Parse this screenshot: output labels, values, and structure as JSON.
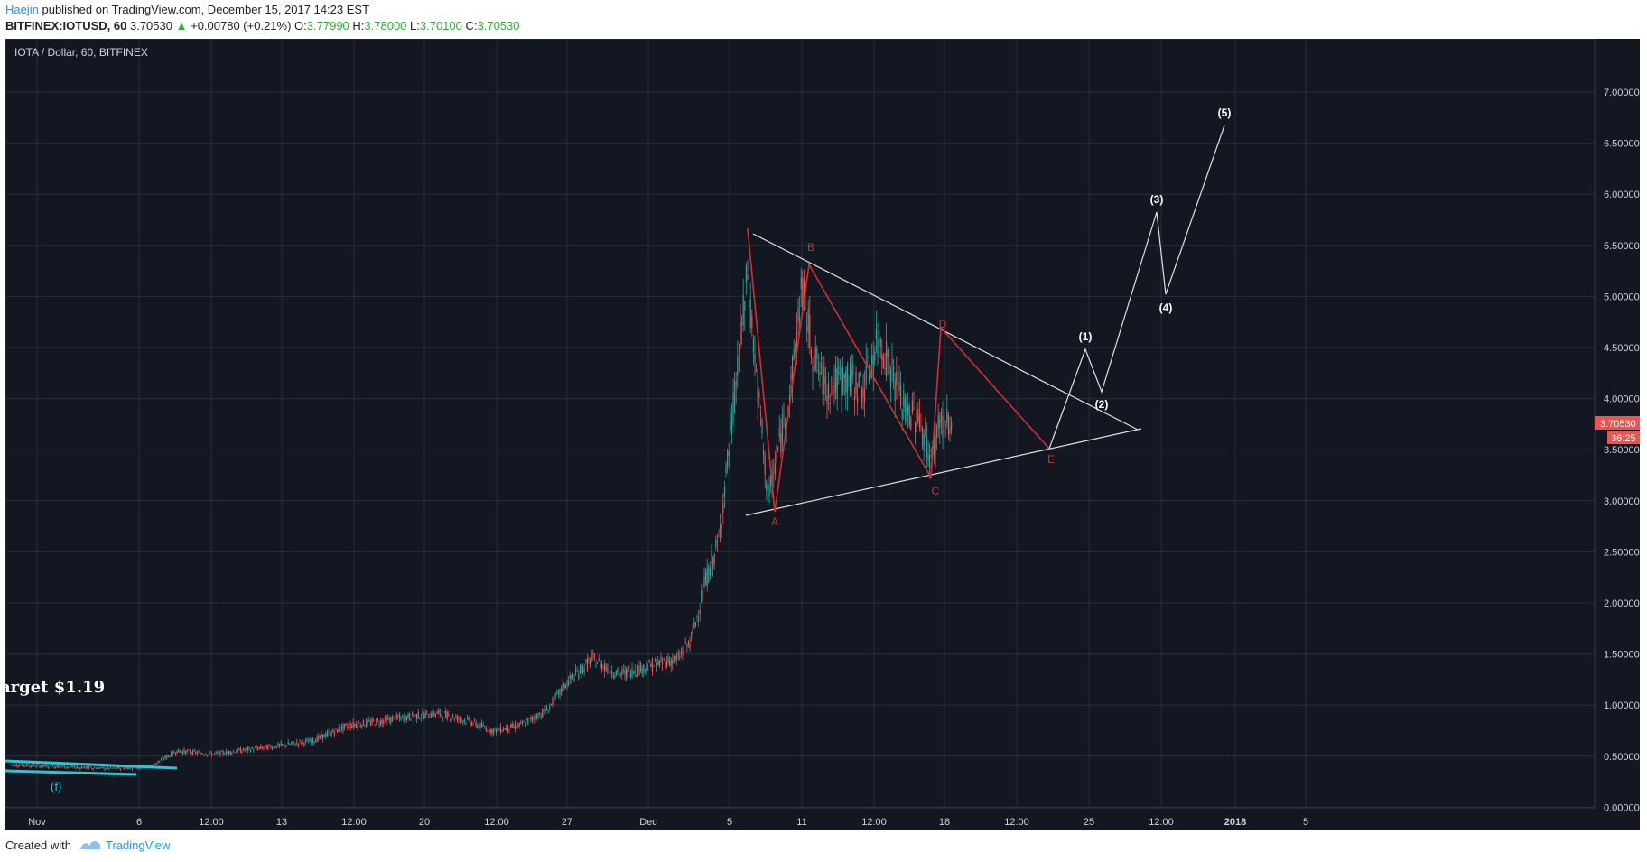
{
  "header": {
    "author": "Haejin",
    "published_text": "published on TradingView.com, December 15, 2017 14:23 EST",
    "symbol": "BITFINEX:IOTUSD, 60",
    "last": "3.70530",
    "change_arrow": "▲",
    "change": "+0.00780 (+0.21%)",
    "o_label": "O:",
    "o_value": "3.77990",
    "h_label": "H:",
    "h_value": "3.78000",
    "l_label": "L:",
    "l_value": "3.70100",
    "c_label": "C:",
    "c_value": "3.70530"
  },
  "chart": {
    "pane_title": "IOTA / Dollar, 60, BITFINEX",
    "price_labels": [
      "7.00000",
      "6.50000",
      "6.00000",
      "5.50000",
      "5.00000",
      "4.50000",
      "4.00000",
      "3.50000",
      "3.00000",
      "2.50000",
      "2.00000",
      "1.50000",
      "1.00000",
      "0.50000",
      "0.00000"
    ],
    "time_labels": [
      "Nov",
      "6",
      "12:00",
      "13",
      "12:00",
      "20",
      "12:00",
      "27",
      "Dec",
      "5",
      "11",
      "12:00",
      "18",
      "12:00",
      "25",
      "12:00",
      "2018",
      "5"
    ],
    "last_price_badge": "3.70530",
    "countdown_badge": "36:25",
    "target_text": "arget $1.19",
    "wave_labels_red": [
      "B",
      "A",
      "C",
      "D",
      "E"
    ],
    "wave_labels_white": [
      "(1)",
      "(2)",
      "(3)",
      "(4)",
      "(5)"
    ],
    "wave_label_small": "(f)",
    "colors": {
      "background": "#131722",
      "grid": "#2a2e39",
      "bull": "#26a69a",
      "bear": "#ef5350",
      "triangle": "#d32f2f",
      "trend": "#e0e0e0",
      "cyan": "#28c7d8",
      "badge": "#ef5350"
    }
  },
  "footer": {
    "created_with": "Created with",
    "brand": "TradingView"
  }
}
